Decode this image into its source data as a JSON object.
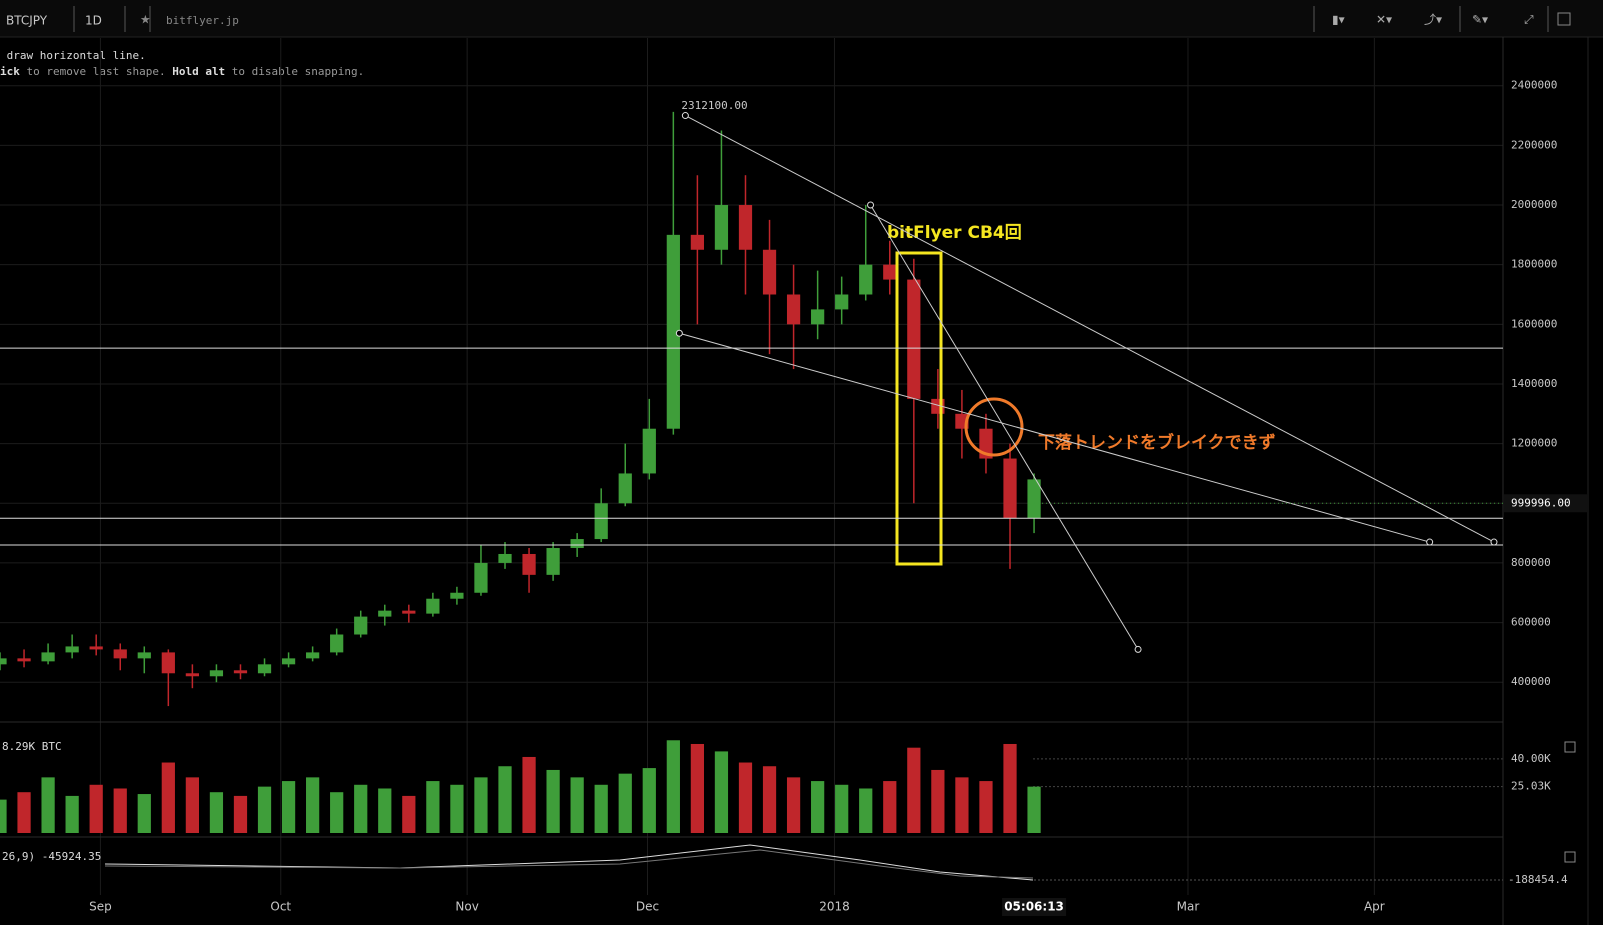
{
  "toolbar": {
    "symbol": "BTCJPY",
    "interval": "1D",
    "source": "bitflyer.jp"
  },
  "hint": {
    "line1": " draw horizontal line.",
    "line2": [
      "ick",
      " to remove last shape. ",
      "Hold alt",
      " to disable snapping."
    ]
  },
  "chart_data": {
    "type": "candlestick",
    "x": [
      0,
      4,
      8,
      12,
      16,
      20,
      24,
      28,
      32,
      36,
      40,
      44,
      48,
      52,
      56,
      60,
      64,
      68,
      72,
      76,
      80,
      84,
      88,
      92,
      96,
      100,
      104,
      108,
      112,
      116,
      120,
      124,
      128,
      132,
      136,
      140,
      144,
      148,
      152,
      156,
      160,
      164,
      168,
      172
    ],
    "candles": {
      "open": [
        460000,
        480000,
        470000,
        500000,
        520000,
        510000,
        480000,
        500000,
        430000,
        420000,
        440000,
        430000,
        460000,
        480000,
        500000,
        560000,
        620000,
        640000,
        630000,
        680000,
        700000,
        800000,
        830000,
        760000,
        850000,
        880000,
        1000000,
        1100000,
        1250000,
        1900000,
        1850000,
        2000000,
        1850000,
        1700000,
        1600000,
        1650000,
        1700000,
        1800000,
        1750000,
        1350000,
        1300000,
        1250000,
        1150000,
        950000
      ],
      "high": [
        500000,
        510000,
        530000,
        560000,
        560000,
        530000,
        520000,
        510000,
        460000,
        460000,
        460000,
        480000,
        500000,
        520000,
        580000,
        640000,
        660000,
        660000,
        700000,
        720000,
        860000,
        870000,
        850000,
        870000,
        900000,
        1050000,
        1200000,
        1350000,
        2312100,
        2100000,
        2250000,
        2100000,
        1950000,
        1800000,
        1780000,
        1760000,
        2000000,
        1880000,
        1820000,
        1450000,
        1380000,
        1300000,
        1200000,
        1100000
      ],
      "low": [
        440000,
        450000,
        460000,
        480000,
        490000,
        440000,
        430000,
        320000,
        380000,
        400000,
        410000,
        420000,
        450000,
        470000,
        490000,
        550000,
        590000,
        600000,
        620000,
        660000,
        690000,
        780000,
        700000,
        740000,
        820000,
        870000,
        990000,
        1080000,
        1230000,
        1600000,
        1800000,
        1700000,
        1500000,
        1450000,
        1550000,
        1600000,
        1680000,
        1700000,
        1000000,
        1250000,
        1150000,
        1100000,
        780000,
        900000
      ],
      "close": [
        480000,
        470000,
        500000,
        520000,
        510000,
        480000,
        500000,
        430000,
        420000,
        440000,
        430000,
        460000,
        480000,
        500000,
        560000,
        620000,
        640000,
        630000,
        680000,
        700000,
        800000,
        830000,
        760000,
        850000,
        880000,
        1000000,
        1100000,
        1250000,
        1900000,
        1850000,
        2000000,
        1850000,
        1700000,
        1600000,
        1650000,
        1700000,
        1800000,
        1750000,
        1350000,
        1300000,
        1250000,
        1150000,
        950000,
        1080000
      ]
    },
    "xlim": [
      0,
      250
    ],
    "xticks": [
      {
        "value": 16.7,
        "label": "Sep"
      },
      {
        "value": 46.7,
        "label": "Oct"
      },
      {
        "value": 77.7,
        "label": "Nov"
      },
      {
        "value": 107.7,
        "label": "Dec"
      },
      {
        "value": 138.8,
        "label": "2018"
      },
      {
        "value": 197.6,
        "label": "Mar"
      },
      {
        "value": 228.6,
        "label": "Apr"
      }
    ],
    "ylim": [
      270000,
      2560000
    ],
    "yticks": [
      400000,
      600000,
      800000,
      1000000,
      1200000,
      1400000,
      1600000,
      1800000,
      2000000,
      2200000,
      2400000
    ],
    "grid": true,
    "up_color": "#3f9e3a",
    "down_color": "#c0262b",
    "volume": {
      "label": "8.29K BTC",
      "values": [
        18000,
        22000,
        30000,
        20000,
        26000,
        24000,
        21000,
        38000,
        30000,
        22000,
        20000,
        25000,
        28000,
        30000,
        22000,
        26000,
        24000,
        20000,
        28000,
        26000,
        30000,
        36000,
        41000,
        34000,
        30000,
        26000,
        32000,
        35000,
        50000,
        48000,
        44000,
        38000,
        36000,
        30000,
        28000,
        26000,
        24000,
        28000,
        46000,
        34000,
        30000,
        28000,
        48000,
        25000
      ],
      "ylim": [
        0,
        55000
      ],
      "yticks": [
        {
          "value": 25030,
          "label": "25.03K"
        },
        {
          "value": 40000,
          "label": "40.00K"
        }
      ]
    },
    "hlines": [
      1520000,
      950000,
      860000
    ],
    "trendlines": [
      {
        "x1": 114,
        "y1": 2300000,
        "x2": 248.5,
        "y2": 870000
      },
      {
        "x1": 113,
        "y1": 1570000,
        "x2": 237.8,
        "y2": 870000
      },
      {
        "x1": 144.8,
        "y1": 2000000,
        "x2": 189.3,
        "y2": 510000
      }
    ],
    "high_label": "2312100.00",
    "last_price": 999996,
    "last_price_label": "999996.00",
    "countdown": "05:06:13",
    "macd": {
      "label": "26,9) -45924.35",
      "tick_label": "-188454.4"
    },
    "annotations": [
      "bitFlyer CB4回",
      "下落トレンドをブレイクできず"
    ]
  }
}
